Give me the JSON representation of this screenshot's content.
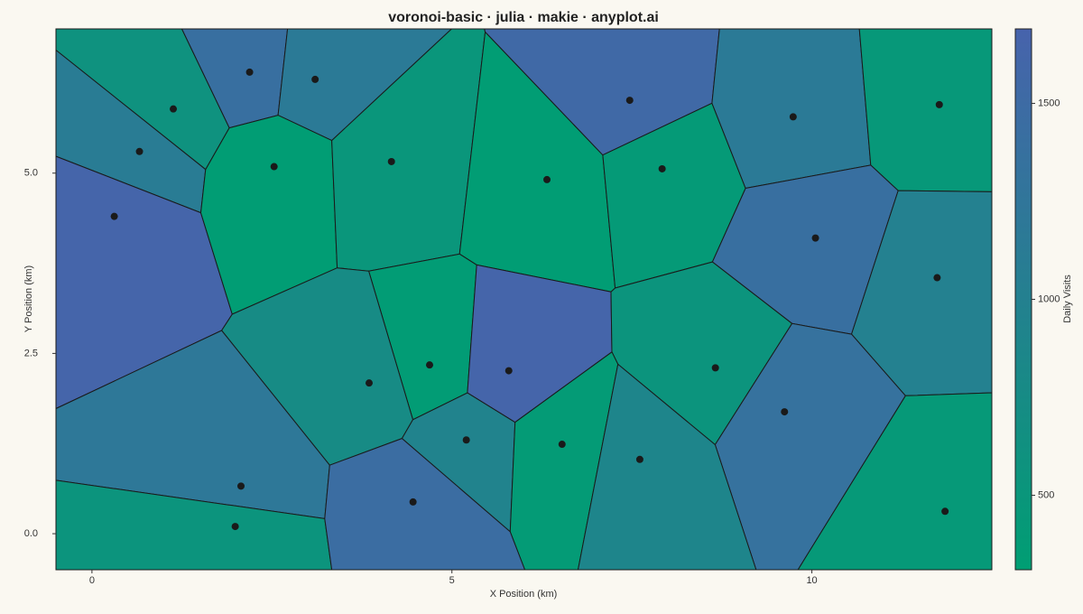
{
  "chart_data": {
    "type": "voronoi",
    "title": "voronoi-basic · julia · makie · anyplot.ai",
    "x_label": "X Position (km)",
    "y_label": "Y Position (km)",
    "colorbar_label": "Daily Visits",
    "x": [
      1.13,
      0.66,
      0.31,
      2.19,
      3.1,
      2.53,
      4.16,
      6.32,
      7.47,
      7.92,
      9.74,
      11.77,
      10.05,
      11.74,
      4.69,
      3.85,
      5.79,
      8.66,
      9.62,
      5.2,
      6.53,
      7.61,
      2.07,
      1.99,
      4.46,
      11.85
    ],
    "y": [
      5.89,
      5.3,
      4.4,
      6.4,
      6.3,
      5.09,
      5.16,
      4.91,
      6.01,
      5.06,
      5.78,
      5.95,
      4.1,
      3.55,
      2.34,
      2.09,
      2.26,
      2.3,
      1.69,
      1.3,
      1.24,
      1.03,
      0.66,
      0.1,
      0.44,
      0.31
    ],
    "values": [
      600,
      1100,
      1650,
      1400,
      1150,
      330,
      500,
      330,
      1550,
      400,
      1150,
      450,
      1400,
      1000,
      350,
      750,
      1650,
      550,
      1350,
      950,
      380,
      900,
      1200,
      550,
      1450,
      420
    ],
    "xlim": [
      -0.5,
      12.5
    ],
    "ylim": [
      -0.5,
      7
    ],
    "xticks": [
      0,
      5,
      10
    ],
    "yticks": [
      {
        "value": 0,
        "label": "0.0"
      },
      {
        "value": 2.5,
        "label": "2.5"
      },
      {
        "value": 5,
        "label": "5.0"
      }
    ],
    "clim": [
      310,
      1690
    ],
    "cticks": [
      500,
      1000,
      1500
    ],
    "colormap": [
      "#009e73",
      "#4763ac"
    ],
    "edge_color": "#1a1a1a",
    "point_color": "#1a1a1a"
  }
}
